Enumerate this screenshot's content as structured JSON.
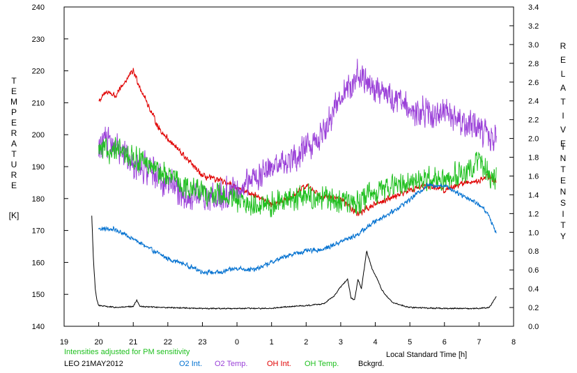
{
  "chart_data": {
    "type": "line",
    "left_axis": {
      "label_letters": [
        "T",
        "E",
        "M",
        "P",
        "E",
        "R",
        "A",
        "T",
        "U",
        "R",
        "E"
      ],
      "unit": "[K]",
      "ylim": [
        140,
        240
      ],
      "ticks": [
        "140",
        "150",
        "160",
        "170",
        "180",
        "190",
        "200",
        "210",
        "220",
        "230",
        "240"
      ]
    },
    "right_axis": {
      "label_word1": [
        "R",
        "E",
        "L",
        "A",
        "T",
        "I",
        "V",
        "E"
      ],
      "label_word2": [
        "I",
        "N",
        "T",
        "E",
        "N",
        "S",
        "I",
        "T",
        "Y"
      ],
      "ylim": [
        0.0,
        3.4
      ],
      "ticks": [
        "0.0",
        "0.2",
        "0.4",
        "0.6",
        "0.8",
        "1.0",
        "1.2",
        "1.4",
        "1.6",
        "1.8",
        "2.0",
        "2.2",
        "2.4",
        "2.6",
        "2.8",
        "3.0",
        "3.2",
        "3.4"
      ]
    },
    "x_axis": {
      "label": "Local Standard Time [h]",
      "xlim": [
        19,
        32
      ],
      "ticks": [
        "19",
        "20",
        "21",
        "22",
        "23",
        "0",
        "1",
        "2",
        "3",
        "4",
        "5",
        "6",
        "7",
        "8"
      ]
    },
    "note": "Intensities adjusted for PM sensitivity",
    "station": "LEO 21MAY2012",
    "legend": [
      {
        "label": "O2 Int.",
        "color": "#0070d0"
      },
      {
        "label": "O2 Temp.",
        "color": "#9a40d8"
      },
      {
        "label": "OH Int.",
        "color": "#e00000"
      },
      {
        "label": "OH Temp.",
        "color": "#20c020"
      },
      {
        "label": "Bckgrd.",
        "color": "#000000"
      }
    ],
    "series": [
      {
        "name": "O2 Int.",
        "axis": "right",
        "color": "#0070d0",
        "x": [
          20.0,
          20.5,
          21.0,
          21.5,
          22.0,
          22.5,
          23.0,
          23.5,
          24.0,
          24.5,
          25.0,
          25.5,
          26.0,
          26.5,
          27.0,
          27.5,
          28.0,
          28.5,
          29.0,
          29.5,
          30.0,
          30.5,
          31.0,
          31.25,
          31.5
        ],
        "y": [
          1.04,
          1.03,
          0.93,
          0.82,
          0.72,
          0.66,
          0.58,
          0.57,
          0.62,
          0.6,
          0.68,
          0.76,
          0.8,
          0.82,
          0.9,
          0.98,
          1.12,
          1.22,
          1.35,
          1.5,
          1.5,
          1.4,
          1.3,
          1.2,
          1.0
        ],
        "noise": 0.03
      },
      {
        "name": "O2 Temp.",
        "axis": "left",
        "color": "#9a40d8",
        "x": [
          20.0,
          20.5,
          21.0,
          21.5,
          22.0,
          22.5,
          23.0,
          23.5,
          24.0,
          24.5,
          25.0,
          25.5,
          26.0,
          26.5,
          27.0,
          27.5,
          28.0,
          28.5,
          29.0,
          29.5,
          30.0,
          30.5,
          31.0,
          31.25,
          31.5
        ],
        "y": [
          198,
          196,
          191,
          189,
          185,
          181,
          180,
          181,
          183,
          186,
          189,
          192,
          196,
          200,
          212,
          219,
          215,
          211,
          208,
          207,
          206,
          204,
          202,
          200,
          198
        ],
        "noise": 9
      },
      {
        "name": "OH Int.",
        "axis": "right",
        "color": "#e00000",
        "x": [
          20.0,
          20.25,
          20.5,
          20.75,
          21.0,
          21.25,
          21.5,
          21.75,
          22.0,
          22.5,
          23.0,
          23.5,
          24.0,
          24.5,
          25.0,
          25.5,
          26.0,
          26.5,
          27.0,
          27.5,
          28.0,
          28.5,
          29.0,
          29.5,
          30.0,
          30.5,
          31.0,
          31.25,
          31.5
        ],
        "y": [
          2.4,
          2.5,
          2.45,
          2.6,
          2.72,
          2.5,
          2.3,
          2.1,
          2.0,
          1.8,
          1.6,
          1.55,
          1.48,
          1.4,
          1.3,
          1.35,
          1.5,
          1.38,
          1.35,
          1.2,
          1.3,
          1.38,
          1.45,
          1.5,
          1.45,
          1.52,
          1.55,
          1.6,
          1.55
        ],
        "noise": 0.04
      },
      {
        "name": "OH Temp.",
        "axis": "left",
        "color": "#20c020",
        "x": [
          20.0,
          20.5,
          21.0,
          21.5,
          22.0,
          22.5,
          23.0,
          23.5,
          24.0,
          24.5,
          25.0,
          25.5,
          26.0,
          26.5,
          27.0,
          27.5,
          28.0,
          28.5,
          29.0,
          29.5,
          30.0,
          30.5,
          31.0,
          31.25,
          31.5
        ],
        "y": [
          195,
          195,
          193,
          190,
          187,
          184,
          182,
          181,
          179,
          178,
          178,
          180,
          181,
          180,
          179,
          179,
          182,
          184,
          185,
          186,
          186,
          188,
          192,
          188,
          186
        ],
        "noise": 4.5
      },
      {
        "name": "Bckgrd.",
        "axis": "right",
        "color": "#000000",
        "x": [
          19.8,
          19.85,
          19.9,
          19.95,
          20.0,
          20.5,
          21.0,
          21.1,
          21.2,
          22.0,
          23.0,
          24.0,
          25.0,
          25.5,
          26.0,
          26.5,
          26.8,
          27.0,
          27.2,
          27.3,
          27.4,
          27.5,
          27.6,
          27.75,
          27.9,
          28.0,
          28.2,
          28.5,
          29.0,
          30.0,
          30.5,
          31.0,
          31.3,
          31.4,
          31.5
        ],
        "y": [
          1.18,
          0.7,
          0.4,
          0.28,
          0.22,
          0.2,
          0.21,
          0.28,
          0.21,
          0.2,
          0.19,
          0.19,
          0.19,
          0.21,
          0.22,
          0.24,
          0.32,
          0.42,
          0.5,
          0.3,
          0.28,
          0.5,
          0.4,
          0.8,
          0.62,
          0.55,
          0.38,
          0.25,
          0.2,
          0.19,
          0.19,
          0.19,
          0.2,
          0.26,
          0.32
        ],
        "noise": 0.008
      }
    ]
  }
}
